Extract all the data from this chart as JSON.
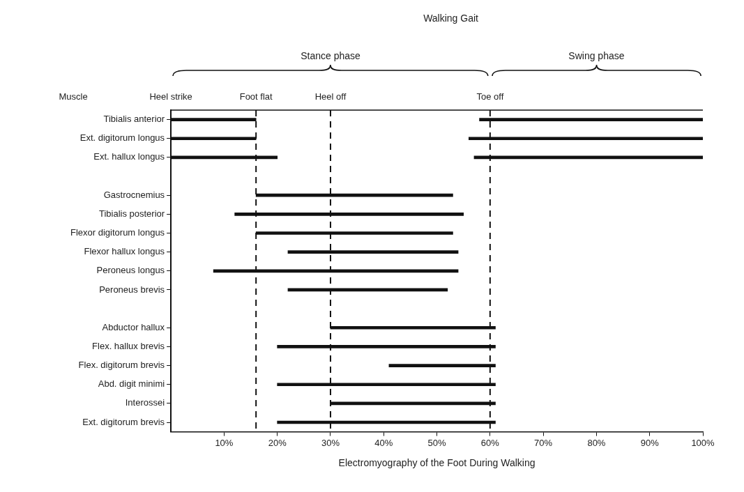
{
  "chart_data": {
    "type": "bar",
    "orientation": "horizontal",
    "title": "Walking Gait",
    "ylabel": "Muscle",
    "xlabel": "Electromyography of the Foot During Walking",
    "categories": [
      "Tibialis anterior",
      "Ext. digitorum longus",
      "Ext. hallux longus",
      null,
      "Gastrocnemius",
      "Tibialis posterior",
      "Flexor digitorum longus",
      "Flexor hallux longus",
      "Peroneus longus",
      "Peroneus brevis",
      null,
      "Abductor hallux",
      "Flex. hallux brevis",
      "Flex. digitorum brevis",
      "Abd. digit minimi",
      "Interossei",
      "Ext. digitorum brevis"
    ],
    "series": [
      {
        "color": "#111111",
        "base": [
          0,
          0,
          0,
          null,
          16,
          12,
          16,
          22,
          8,
          22,
          null,
          30,
          20,
          41,
          20,
          30,
          20
        ],
        "values": [
          16,
          16,
          20,
          null,
          37,
          43,
          37,
          32,
          46,
          30,
          null,
          31,
          41,
          20,
          41,
          31,
          41
        ]
      },
      {
        "color": "#111111",
        "base": [
          58,
          56,
          57,
          null,
          null,
          null,
          null,
          null,
          null,
          null,
          null,
          null,
          null,
          null,
          null,
          null,
          null
        ],
        "values": [
          42,
          44,
          43,
          null,
          null,
          null,
          null,
          null,
          null,
          null,
          null,
          null,
          null,
          null,
          null,
          null,
          null
        ]
      }
    ],
    "xlim": [
      0,
      100
    ],
    "xticks": [
      {
        "value": 10,
        "label": "10%"
      },
      {
        "value": 20,
        "label": "20%"
      },
      {
        "value": 30,
        "label": "30%"
      },
      {
        "value": 40,
        "label": "40%"
      },
      {
        "value": 50,
        "label": "50%"
      },
      {
        "value": 60,
        "label": "60%"
      },
      {
        "value": 70,
        "label": "70%"
      },
      {
        "value": 80,
        "label": "80%"
      },
      {
        "value": 90,
        "label": "90%"
      },
      {
        "value": 100,
        "label": "100%"
      }
    ],
    "ref_lines": [
      {
        "axis": "x",
        "value": 16,
        "label": "Foot flat",
        "line_style": "dashed"
      },
      {
        "axis": "x",
        "value": 30,
        "label": "Heel off",
        "line_style": "dashed"
      },
      {
        "axis": "x",
        "value": 60,
        "label": "Toe off",
        "line_style": "dashed"
      }
    ],
    "annotations": [
      "Heel strike",
      "Stance phase",
      "Swing phase"
    ],
    "grid": false,
    "legend": false
  }
}
